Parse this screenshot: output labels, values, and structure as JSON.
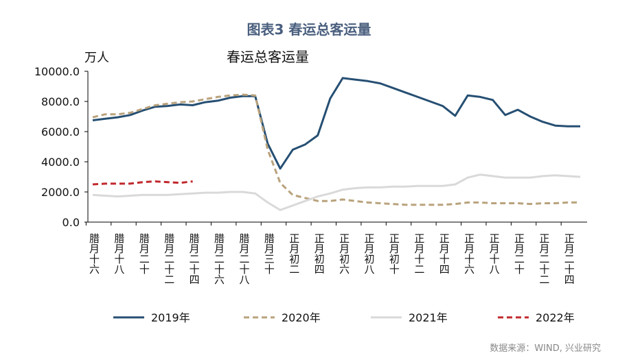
{
  "chart_data": {
    "type": "line",
    "title": "图表3 春运总客运量",
    "subtitle": "春运总客运量",
    "y_axis_label": "万人",
    "source": "数据来源：WIND, 兴业研究",
    "categories": [
      "腊月十六",
      null,
      "腊月十八",
      null,
      "腊月二十",
      null,
      "腊月二十二",
      null,
      "腊月二十四",
      null,
      "腊月二十六",
      null,
      "腊月二十八",
      null,
      "腊月三十",
      null,
      "正月初二",
      null,
      "正月初四",
      null,
      "正月初六",
      null,
      "正月初八",
      null,
      "正月初十",
      null,
      "正月十二",
      null,
      "正月十四",
      null,
      "正月十六",
      null,
      "正月十八",
      null,
      "正月二十",
      null,
      "正月二十二",
      null,
      "正月二十四",
      null
    ],
    "series": [
      {
        "name": "2019年",
        "color": "#264f73",
        "dash": false,
        "values": [
          6750,
          6850,
          6950,
          7100,
          7400,
          7650,
          7700,
          7800,
          7750,
          7950,
          8050,
          8250,
          8350,
          8350,
          5200,
          3550,
          4800,
          5150,
          5750,
          8200,
          9550,
          9450,
          9350,
          9200,
          8900,
          8600,
          8300,
          8000,
          7700,
          7050,
          8400,
          8300,
          8100,
          7100,
          7450,
          7000,
          6650,
          6400,
          6350,
          6350
        ]
      },
      {
        "name": "2020年",
        "color": "#b9a27c",
        "dash": true,
        "values": [
          6950,
          7150,
          7150,
          7250,
          7500,
          7750,
          7850,
          7950,
          8000,
          8150,
          8300,
          8400,
          8450,
          8400,
          4800,
          2600,
          1800,
          1600,
          1400,
          1400,
          1500,
          1400,
          1300,
          1250,
          1200,
          1150,
          1150,
          1150,
          1150,
          1200,
          1300,
          1300,
          1250,
          1250,
          1250,
          1200,
          1250,
          1250,
          1300,
          1300
        ]
      },
      {
        "name": "2021年",
        "color": "#d9d9d9",
        "dash": false,
        "values": [
          1800,
          1750,
          1700,
          1750,
          1800,
          1800,
          1800,
          1850,
          1900,
          1950,
          1950,
          2000,
          2000,
          1900,
          1300,
          800,
          1100,
          1400,
          1700,
          1900,
          2150,
          2250,
          2300,
          2300,
          2350,
          2350,
          2400,
          2400,
          2400,
          2500,
          2950,
          3150,
          3050,
          2950,
          2950,
          2950,
          3050,
          3100,
          3050,
          3000
        ]
      },
      {
        "name": "2022年",
        "color": "#c0282d",
        "dash": true,
        "values": [
          2500,
          2550,
          2550,
          2550,
          2650,
          2700,
          2650,
          2600,
          2700,
          null,
          null,
          null,
          null,
          null,
          null,
          null,
          null,
          null,
          null,
          null,
          null,
          null,
          null,
          null,
          null,
          null,
          null,
          null,
          null,
          null,
          null,
          null,
          null,
          null,
          null,
          null,
          null,
          null,
          null,
          null
        ]
      }
    ],
    "ylim": [
      0,
      10000
    ],
    "yticks": [
      {
        "value": 0,
        "label": "0.0"
      },
      {
        "value": 2000,
        "label": "2000.0"
      },
      {
        "value": 4000,
        "label": "4000.0"
      },
      {
        "value": 6000,
        "label": "6000.0"
      },
      {
        "value": 8000,
        "label": "8000.0"
      },
      {
        "value": 10000,
        "label": "10000.0"
      }
    ],
    "legend": "bottom"
  }
}
